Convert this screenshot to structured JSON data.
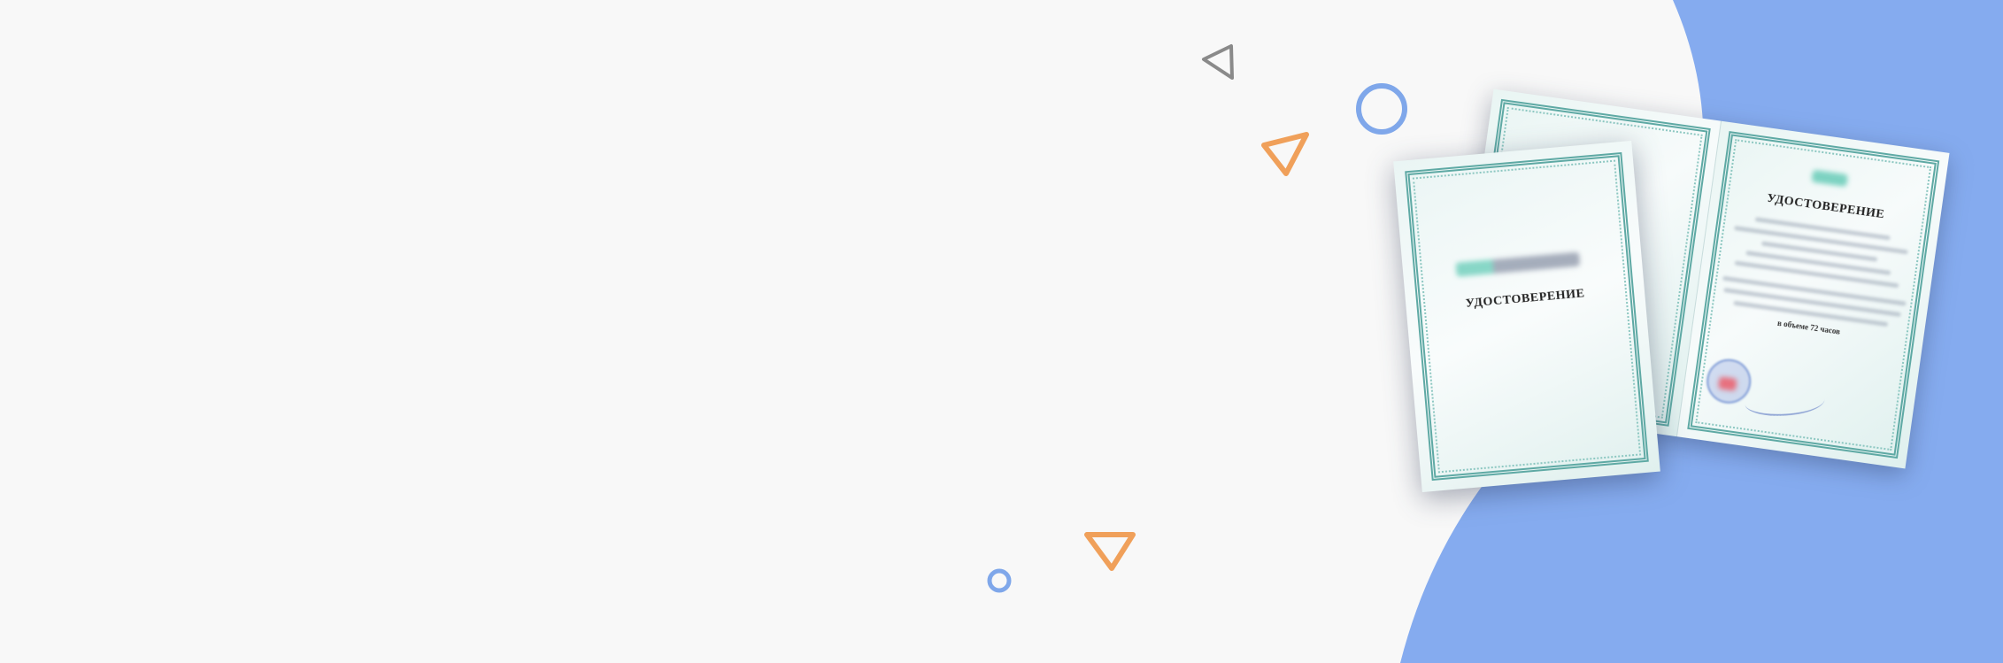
{
  "colors": {
    "background": "#f8f8f8",
    "blue_shape": "#85abef",
    "orange_accent": "#f0a05a",
    "gray_accent": "#8a8a8a",
    "blue_accent": "#7fa7ea"
  },
  "certificate_cover": {
    "title": "УДОСТОВЕРЕНИЕ"
  },
  "certificate_inner": {
    "title": "УДОСТОВЕРЕНИЕ",
    "hours_text": "в объеме 72 часов"
  }
}
